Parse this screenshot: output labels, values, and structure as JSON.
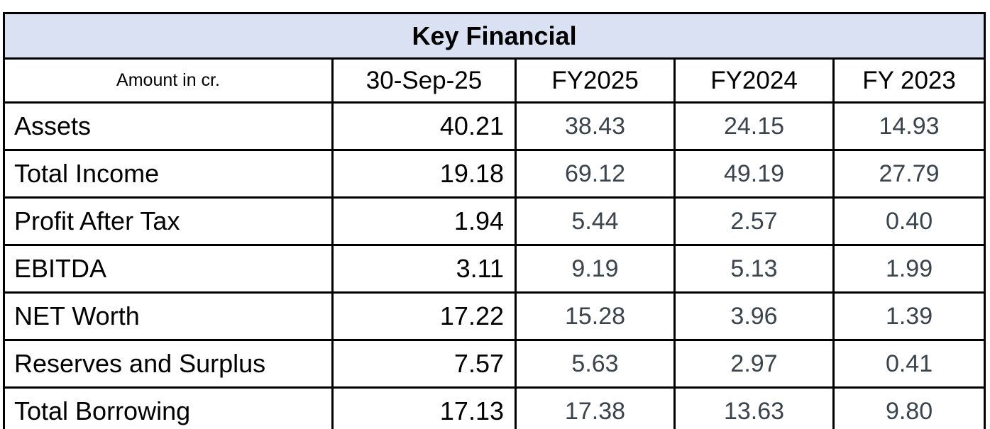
{
  "chart_data": {
    "type": "table",
    "title": "Key Financial",
    "unit_note": "Amount in cr.",
    "columns": [
      "30-Sep-25",
      "FY2025",
      "FY2024",
      "FY 2023"
    ],
    "rows": [
      "Assets",
      "Total Income",
      "Profit After Tax",
      "EBITDA",
      "NET Worth",
      "Reserves and Surplus",
      "Total Borrowing"
    ],
    "series": [
      {
        "name": "30-Sep-25",
        "values": [
          40.21,
          19.18,
          1.94,
          3.11,
          17.22,
          7.57,
          17.13
        ]
      },
      {
        "name": "FY2025",
        "values": [
          38.43,
          69.12,
          5.44,
          9.19,
          15.28,
          5.63,
          17.38
        ]
      },
      {
        "name": "FY2024",
        "values": [
          24.15,
          49.19,
          2.57,
          5.13,
          3.96,
          2.97,
          13.63
        ]
      },
      {
        "name": "FY 2023",
        "values": [
          14.93,
          27.79,
          0.4,
          1.99,
          1.39,
          0.41,
          9.8
        ]
      }
    ]
  },
  "table": {
    "title": "Key Financial",
    "corner_label": "Amount in cr.",
    "columns": [
      "30-Sep-25",
      "FY2025",
      "FY2024",
      "FY 2023"
    ],
    "rows": [
      {
        "label": "Assets",
        "values": [
          "40.21",
          "38.43",
          "24.15",
          "14.93"
        ]
      },
      {
        "label": "Total Income",
        "values": [
          "19.18",
          "69.12",
          "49.19",
          "27.79"
        ]
      },
      {
        "label": "Profit After Tax",
        "values": [
          "1.94",
          "5.44",
          "2.57",
          "0.40"
        ]
      },
      {
        "label": "EBITDA",
        "values": [
          "3.11",
          "9.19",
          "5.13",
          "1.99"
        ]
      },
      {
        "label": "NET Worth",
        "values": [
          "17.22",
          "15.28",
          "3.96",
          "1.39"
        ]
      },
      {
        "label": "Reserves and Surplus",
        "values": [
          "7.57",
          "5.63",
          "2.97",
          "0.41"
        ]
      },
      {
        "label": "Total Borrowing",
        "values": [
          "17.13",
          "17.38",
          "13.63",
          "9.80"
        ]
      }
    ]
  },
  "colors": {
    "title_background": "#dae1f3",
    "border": "#000000",
    "primary_text": "#000000",
    "fy_value_text": "#3b434c"
  }
}
